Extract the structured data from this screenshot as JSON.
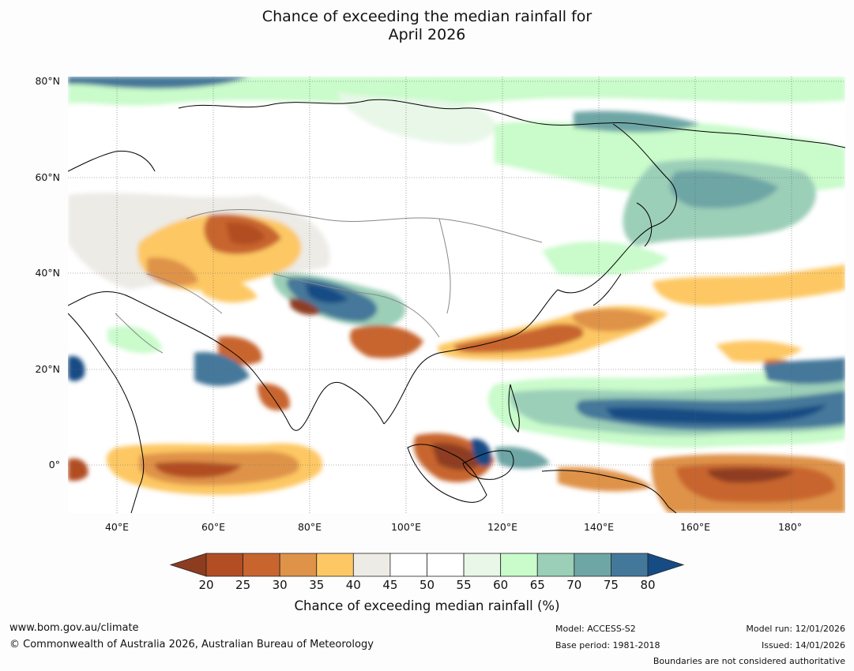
{
  "title": {
    "line1": "Chance of exceeding the median rainfall for",
    "line2": "April 2026"
  },
  "map": {
    "lat_labels": [
      "80°N",
      "60°N",
      "40°N",
      "20°N",
      "0°"
    ],
    "lon_labels": [
      "40°E",
      "60°E",
      "80°E",
      "100°E",
      "120°E",
      "140°E",
      "160°E",
      "180°"
    ],
    "lon_range": [
      30,
      190
    ],
    "lat_range": [
      -10,
      80
    ]
  },
  "colorbar": {
    "ticks": [
      "20",
      "25",
      "30",
      "35",
      "40",
      "45",
      "50",
      "55",
      "60",
      "65",
      "70",
      "75",
      "80"
    ],
    "colors": [
      "#8e3c20",
      "#b24d24",
      "#c8652f",
      "#df9348",
      "#fdc864",
      "#ecebe6",
      "#ffffff",
      "#ffffff",
      "#e8f7e8",
      "#c9fbcb",
      "#9bcfb8",
      "#6ea6a5",
      "#44789a",
      "#164b84"
    ],
    "label": "Chance of exceeding median rainfall (%)"
  },
  "footer": {
    "website": "www.bom.gov.au/climate",
    "copyright": "© Commonwealth of Australia 2026, Australian Bureau of Meteorology",
    "model": "Model: ACCESS-S2",
    "base_period": "Base period: 1981-2018",
    "model_run": "Model run: 12/01/2026",
    "issued": "Issued: 14/01/2026",
    "disclaimer": "Boundaries are not considered authoritative"
  }
}
